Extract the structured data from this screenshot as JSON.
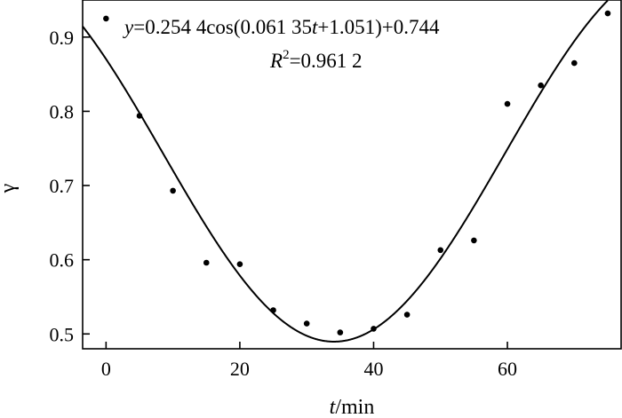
{
  "chart_data": {
    "type": "scatter",
    "xlabel_italic": "t",
    "xlabel_rest": "/min",
    "ylabel": "γ",
    "xlim": [
      -3.5,
      77
    ],
    "ylim": [
      0.48,
      0.95
    ],
    "xticks": [
      0,
      20,
      40,
      60
    ],
    "yticks": [
      0.5,
      0.6,
      0.7,
      0.8,
      0.9
    ],
    "ytick_labels": [
      "0.5",
      "0.6",
      "0.7",
      "0.8",
      "0.9"
    ],
    "grid": false,
    "points": [
      {
        "x": 0,
        "y": 0.925
      },
      {
        "x": 5,
        "y": 0.794
      },
      {
        "x": 10,
        "y": 0.693
      },
      {
        "x": 15,
        "y": 0.596
      },
      {
        "x": 20,
        "y": 0.594
      },
      {
        "x": 25,
        "y": 0.532
      },
      {
        "x": 30,
        "y": 0.514
      },
      {
        "x": 35,
        "y": 0.502
      },
      {
        "x": 40,
        "y": 0.507
      },
      {
        "x": 45,
        "y": 0.526
      },
      {
        "x": 50,
        "y": 0.613
      },
      {
        "x": 55,
        "y": 0.626
      },
      {
        "x": 60,
        "y": 0.81
      },
      {
        "x": 65,
        "y": 0.835
      },
      {
        "x": 70,
        "y": 0.865
      },
      {
        "x": 75,
        "y": 0.932
      }
    ],
    "fit": {
      "A": 0.2544,
      "omega": 0.06135,
      "phi": 1.051,
      "C": 0.744
    },
    "annotation": {
      "eq_y": "y",
      "eq_mid": "=0.254 4cos(0.061 35",
      "eq_t": "t",
      "eq_end": "+1.051)+0.744",
      "r2_R": "R",
      "r2_sup": "2",
      "r2_rest": "=0.961 2"
    }
  }
}
